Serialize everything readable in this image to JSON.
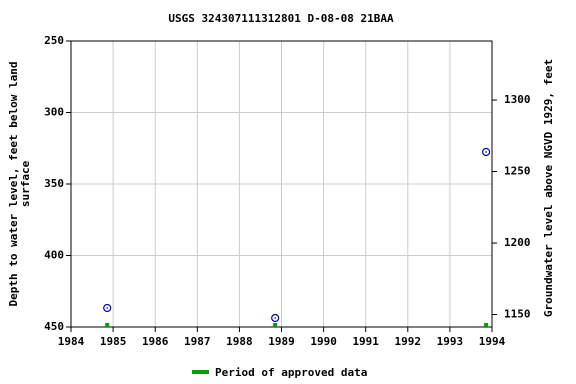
{
  "chart_data": {
    "type": "scatter",
    "title": "USGS 324307111312801 D-08-08 21BAA",
    "ylabel": [
      "Depth to water level, feet below land",
      "surface"
    ],
    "y2label": "Groundwater level above NGVD 1929, feet",
    "x": [
      1984.86,
      1988.85,
      1993.86
    ],
    "values": [
      436.7,
      443.7,
      327.6
    ],
    "color": "#0000cc",
    "xlim": [
      1984,
      1994
    ],
    "xticks": [
      1984,
      1985,
      1986,
      1987,
      1988,
      1989,
      1990,
      1991,
      1992,
      1993,
      1994
    ],
    "ylim": [
      250,
      450
    ],
    "yticks": [
      250,
      300,
      350,
      400,
      450
    ],
    "y_inverted": true,
    "y2lim": [
      1141.3,
      1341.3
    ],
    "y2ticks": [
      1150,
      1200,
      1250,
      1300
    ],
    "grid": true,
    "approved": {
      "name": "Period of approved data",
      "color": "#00a000",
      "x": [
        1984.86,
        1988.85,
        1993.86
      ]
    }
  }
}
